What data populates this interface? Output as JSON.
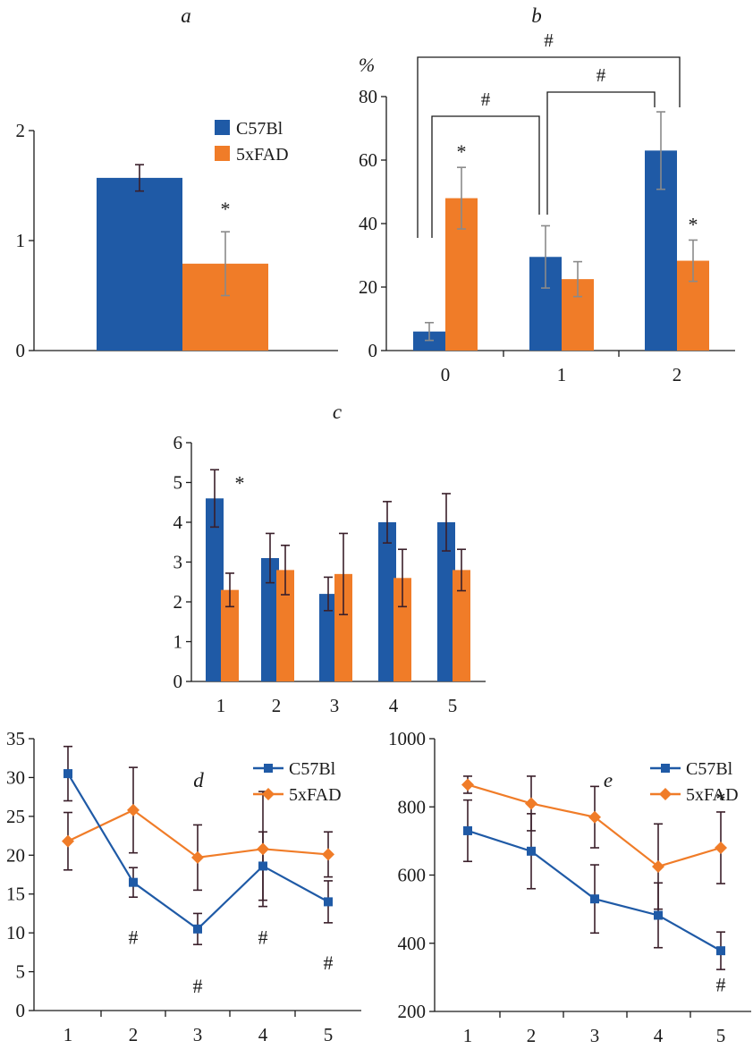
{
  "colors": {
    "c57": "#1f5aa6",
    "fad": "#f07c28",
    "err_dark": "#3a1f2a",
    "err_gray": "#8a8a8a"
  },
  "legend": {
    "c57": "C57Bl",
    "fad": "5xFAD"
  },
  "chart_data": [
    {
      "id": "a",
      "panel_label": "a",
      "type": "bar",
      "ylim": [
        0,
        2
      ],
      "yticks": [
        "0",
        "1",
        "2"
      ],
      "series": [
        {
          "name": "C57Bl",
          "values": [
            1.57
          ],
          "err": [
            0.12
          ]
        },
        {
          "name": "5xFAD",
          "values": [
            0.79
          ],
          "err": [
            0.29
          ]
        }
      ],
      "annotations": [
        {
          "text": "*",
          "series": 1,
          "index": 0
        }
      ],
      "legend_position": "top-right"
    },
    {
      "id": "b",
      "panel_label": "b",
      "type": "bar",
      "ylabel": "%",
      "categories": [
        "0",
        "1",
        "2"
      ],
      "ylim": [
        0,
        80
      ],
      "yticks": [
        "0",
        "20",
        "40",
        "60",
        "80"
      ],
      "series": [
        {
          "name": "C57Bl",
          "values": [
            6,
            29.5,
            63
          ],
          "err": [
            2.8,
            9.8,
            12.2
          ]
        },
        {
          "name": "5xFAD",
          "values": [
            48,
            22.5,
            28.3
          ],
          "err": [
            9.7,
            5.5,
            6.5
          ]
        }
      ],
      "annotations": [
        {
          "text": "*",
          "series": 1,
          "index": 0
        },
        {
          "text": "*",
          "series": 1,
          "index": 2
        }
      ],
      "brackets": [
        {
          "text": "#",
          "from": 0,
          "to": 1
        },
        {
          "text": "#",
          "from": 1,
          "to": 2
        },
        {
          "text": "#",
          "from": 0,
          "to": 2
        }
      ]
    },
    {
      "id": "c",
      "panel_label": "c",
      "type": "bar",
      "categories": [
        "1",
        "2",
        "3",
        "4",
        "5"
      ],
      "ylim": [
        0,
        6
      ],
      "yticks": [
        "0",
        "1",
        "2",
        "3",
        "4",
        "5",
        "6"
      ],
      "series": [
        {
          "name": "C57Bl",
          "values": [
            4.6,
            3.1,
            2.2,
            4.0,
            4.0
          ],
          "err": [
            0.72,
            0.62,
            0.42,
            0.52,
            0.72
          ]
        },
        {
          "name": "5xFAD",
          "values": [
            2.3,
            2.8,
            2.7,
            2.6,
            2.8
          ],
          "err": [
            0.42,
            0.62,
            1.02,
            0.72,
            0.52
          ]
        }
      ],
      "annotations": [
        {
          "text": "*",
          "series": 0,
          "index": 0
        }
      ]
    },
    {
      "id": "d",
      "panel_label": "d",
      "type": "line",
      "x": [
        "1",
        "2",
        "3",
        "4",
        "5"
      ],
      "ylim": [
        0,
        35
      ],
      "yticks": [
        "0",
        "5",
        "10",
        "15",
        "20",
        "25",
        "30",
        "35"
      ],
      "series": [
        {
          "name": "C57Bl",
          "values": [
            30.5,
            16.5,
            10.5,
            18.6,
            14.0
          ],
          "err": [
            3.5,
            1.9,
            2.0,
            4.4,
            2.7
          ],
          "marker": "square"
        },
        {
          "name": "5xFAD",
          "values": [
            21.8,
            25.8,
            19.7,
            20.8,
            20.1
          ],
          "err": [
            3.7,
            5.5,
            4.2,
            7.4,
            2.9
          ],
          "marker": "diamond"
        }
      ],
      "annotations": [
        {
          "text": "#",
          "x_index": 1,
          "y": 9.5
        },
        {
          "text": "#",
          "x_index": 2,
          "y": 3.2
        },
        {
          "text": "#",
          "x_index": 3,
          "y": 9.5
        },
        {
          "text": "#",
          "x_index": 4,
          "y": 6.2
        }
      ],
      "legend_position": "top-right"
    },
    {
      "id": "e",
      "panel_label": "e",
      "type": "line",
      "x": [
        "1",
        "2",
        "3",
        "4",
        "5"
      ],
      "ylim": [
        200,
        1000
      ],
      "yticks": [
        "200",
        "400",
        "600",
        "800",
        "1000"
      ],
      "series": [
        {
          "name": "C57Bl",
          "values": [
            730,
            670,
            530,
            482,
            378
          ],
          "err": [
            90,
            110,
            100,
            95,
            55
          ],
          "marker": "square"
        },
        {
          "name": "5xFAD",
          "values": [
            865,
            810,
            770,
            625,
            680
          ],
          "err": [
            25,
            80,
            90,
            125,
            105
          ],
          "marker": "diamond"
        }
      ],
      "annotations": [
        {
          "text": "*",
          "x_index": 4,
          "y": 825
        },
        {
          "text": "#",
          "x_index": 4,
          "y": 280
        }
      ],
      "legend_position": "top-right"
    }
  ]
}
